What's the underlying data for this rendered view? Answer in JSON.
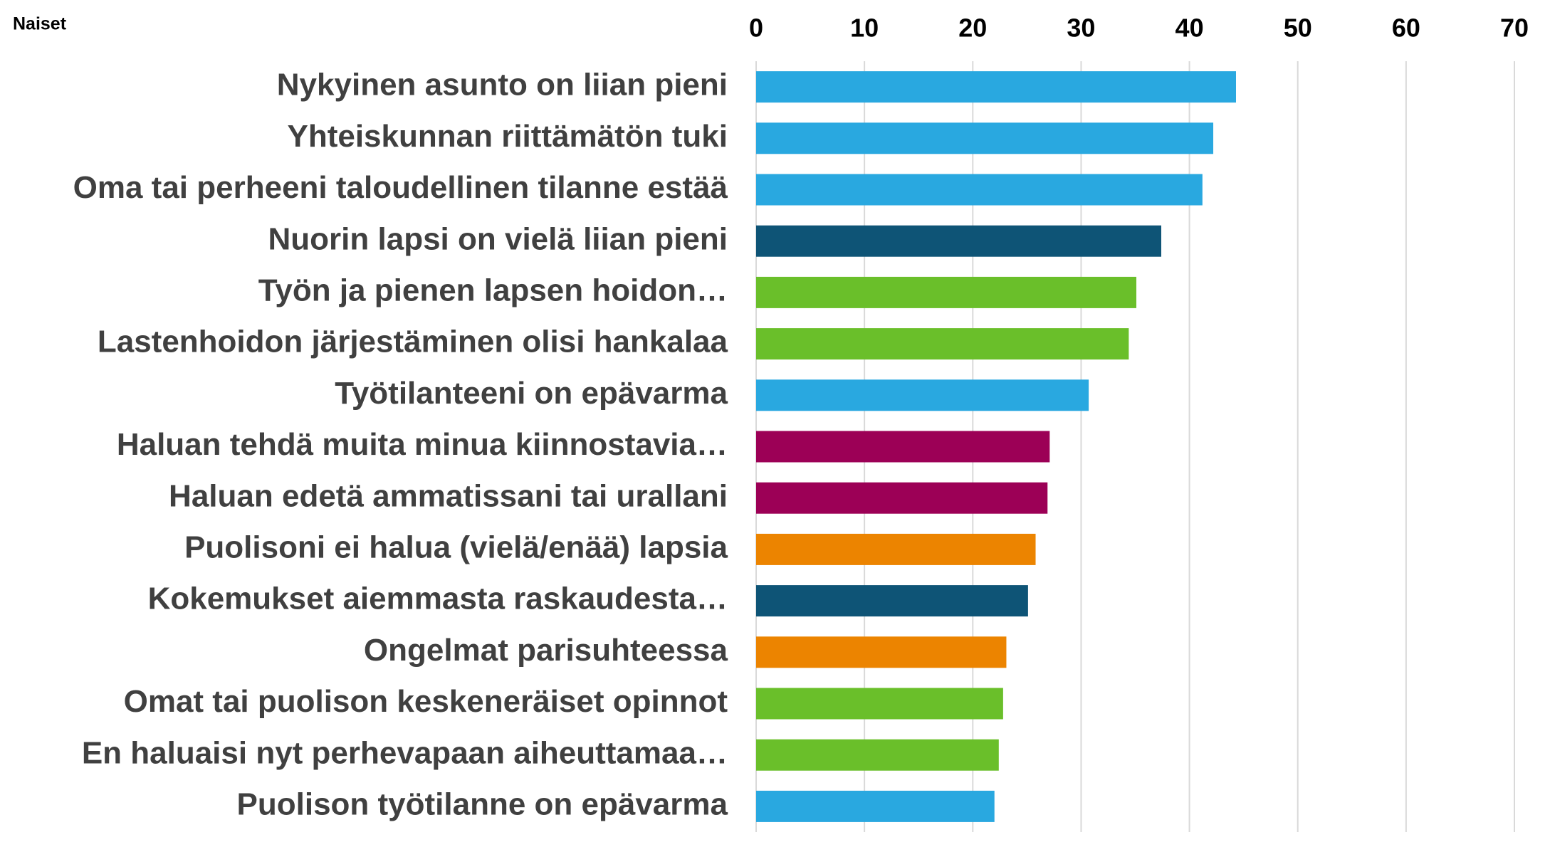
{
  "chart_data": {
    "type": "bar",
    "orientation": "horizontal",
    "title": "Naiset",
    "categories": [
      "Nykyinen asunto on liian pieni",
      "Yhteiskunnan riittämätön tuki",
      "Oma tai perheeni taloudellinen tilanne estää",
      "Nuorin lapsi on vielä liian  pieni",
      "Työn ja pienen lapsen hoidon…",
      "Lastenhoidon järjestäminen olisi hankalaa",
      "Työtilanteeni on epävarma",
      "Haluan tehdä muita minua kiinnostavia…",
      "Haluan edetä ammatissani tai urallani",
      "Puolisoni ei halua  (vielä/enää) lapsia",
      "Kokemukset aiemmasta raskaudesta…",
      "Ongelmat parisuhteessa",
      "Omat tai puolison keskeneräiset opinnot",
      "En haluaisi nyt perhevapaan aiheuttamaa…",
      "Puolison työtilanne on epävarma"
    ],
    "values": [
      44.3,
      42.2,
      41.2,
      37.4,
      35.1,
      34.4,
      30.7,
      27.1,
      26.9,
      25.8,
      25.1,
      23.1,
      22.8,
      22.4,
      22.0
    ],
    "colors": [
      "#29a8e0",
      "#29a8e0",
      "#29a8e0",
      "#0e5476",
      "#6abf2a",
      "#6abf2a",
      "#29a8e0",
      "#9c0056",
      "#9c0056",
      "#ec8400",
      "#0e5476",
      "#ec8400",
      "#6abf2a",
      "#6abf2a",
      "#29a8e0"
    ],
    "xlim": [
      0,
      70
    ],
    "xticks": [
      0,
      10,
      20,
      30,
      40,
      50,
      60,
      70
    ],
    "grid": true
  }
}
